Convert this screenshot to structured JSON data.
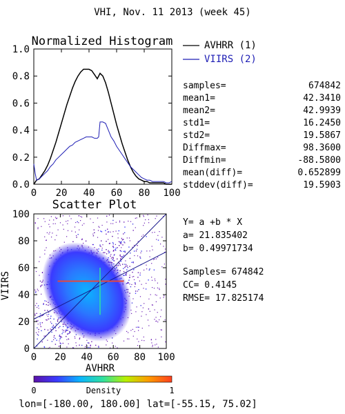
{
  "header": {
    "title": "VHI,  Nov. 11 2013 (week 45)"
  },
  "footer": {
    "bbox_text": "lon=[-180.00, 180.00] lat=[-55.15, 75.02]"
  },
  "colors": {
    "avhrr": "#000000",
    "viirs": "#1c1cb4",
    "fit_line": "#1a1a8c",
    "hline": "#e8463a"
  },
  "histogram": {
    "legend": [
      {
        "label": "AVHRR (1)",
        "color": "#000000"
      },
      {
        "label": "VIIRS (2)",
        "color": "#1c1cb4"
      }
    ],
    "stats": [
      {
        "label": "samples=",
        "value": "674842"
      },
      {
        "label": "mean1=",
        "value": "42.3410"
      },
      {
        "label": "mean2=",
        "value": "42.9939"
      },
      {
        "label": "std1=",
        "value": "16.2450"
      },
      {
        "label": "std2=",
        "value": "19.5867"
      },
      {
        "label": "Diffmax=",
        "value": "98.3600"
      },
      {
        "label": "Diffmin=",
        "value": "-88.5800"
      },
      {
        "label": "mean(diff)=",
        "value": "0.652899"
      },
      {
        "label": "stddev(diff)=",
        "value": "19.5903"
      }
    ]
  },
  "scatter": {
    "fit_lines": [
      "Y= a +b * X",
      "a= 21.835402",
      "b= 0.49971734"
    ],
    "summary": [
      "Samples= 674842",
      "CC=  0.4145",
      "RMSE= 17.825174"
    ]
  },
  "colorbar": {
    "label": "Density",
    "min_label": "0",
    "max_label": "1",
    "stops": [
      "#5b12a8",
      "#3a3aff",
      "#0ab4ff",
      "#30e0a0",
      "#b8f000",
      "#ff9a00",
      "#ff4020"
    ]
  },
  "chart_data": [
    {
      "type": "line",
      "title": "Normalized Histogram",
      "xlabel": "",
      "ylabel": "",
      "xlim": [
        0,
        100
      ],
      "ylim": [
        0,
        1.0
      ],
      "xticks": [
        "0",
        "20",
        "40",
        "60",
        "80",
        "100"
      ],
      "yticks": [
        "0.0",
        "0.2",
        "0.4",
        "0.6",
        "0.8",
        "1.0"
      ],
      "legend_position": "right",
      "series": [
        {
          "name": "AVHRR (1)",
          "x": [
            0,
            2,
            4,
            6,
            8,
            10,
            12,
            14,
            16,
            18,
            20,
            22,
            24,
            26,
            28,
            30,
            32,
            34,
            36,
            38,
            40,
            42,
            44,
            46,
            48,
            50,
            52,
            54,
            56,
            58,
            60,
            62,
            64,
            66,
            68,
            70,
            72,
            74,
            76,
            78,
            80,
            82,
            84,
            86,
            88,
            90,
            92,
            94,
            96,
            98,
            100
          ],
          "y": [
            0.0,
            0.03,
            0.04,
            0.07,
            0.1,
            0.14,
            0.19,
            0.25,
            0.31,
            0.38,
            0.45,
            0.52,
            0.59,
            0.65,
            0.71,
            0.76,
            0.8,
            0.83,
            0.85,
            0.85,
            0.85,
            0.84,
            0.81,
            0.78,
            0.82,
            0.8,
            0.75,
            0.68,
            0.6,
            0.52,
            0.44,
            0.37,
            0.3,
            0.24,
            0.18,
            0.13,
            0.09,
            0.06,
            0.04,
            0.03,
            0.02,
            0.02,
            0.01,
            0.01,
            0.01,
            0.01,
            0.01,
            0.01,
            0.0,
            0.0,
            0.0
          ]
        },
        {
          "name": "VIIRS (2)",
          "x": [
            0,
            1,
            2,
            4,
            6,
            8,
            10,
            12,
            14,
            16,
            18,
            20,
            22,
            24,
            26,
            28,
            30,
            32,
            34,
            36,
            38,
            40,
            42,
            44,
            46,
            47,
            48,
            50,
            52,
            54,
            56,
            58,
            60,
            62,
            64,
            66,
            68,
            70,
            72,
            74,
            76,
            78,
            80,
            82,
            84,
            86,
            88,
            90,
            92,
            94,
            96,
            98,
            100
          ],
          "y": [
            0.15,
            0.08,
            0.03,
            0.04,
            0.06,
            0.08,
            0.1,
            0.13,
            0.15,
            0.18,
            0.2,
            0.22,
            0.24,
            0.26,
            0.28,
            0.29,
            0.31,
            0.32,
            0.33,
            0.34,
            0.35,
            0.35,
            0.35,
            0.34,
            0.34,
            0.35,
            0.46,
            0.46,
            0.45,
            0.4,
            0.35,
            0.32,
            0.28,
            0.25,
            0.22,
            0.19,
            0.16,
            0.13,
            0.11,
            0.09,
            0.07,
            0.05,
            0.04,
            0.03,
            0.03,
            0.02,
            0.02,
            0.02,
            0.02,
            0.02,
            0.01,
            0.01,
            0.02
          ]
        }
      ]
    },
    {
      "type": "scatter",
      "title": "Scatter Plot",
      "xlabel": "AVHRR",
      "ylabel": "VIIRS",
      "xlim": [
        0,
        100
      ],
      "ylim": [
        0,
        100
      ],
      "xticks": [
        "0",
        "20",
        "40",
        "60",
        "80",
        "100"
      ],
      "yticks": [
        "0",
        "20",
        "40",
        "60",
        "80",
        "100"
      ],
      "fit": {
        "a": 21.835402,
        "b": 0.49971734
      },
      "density_center": [
        40,
        42
      ],
      "highlight_y": 50
    }
  ]
}
